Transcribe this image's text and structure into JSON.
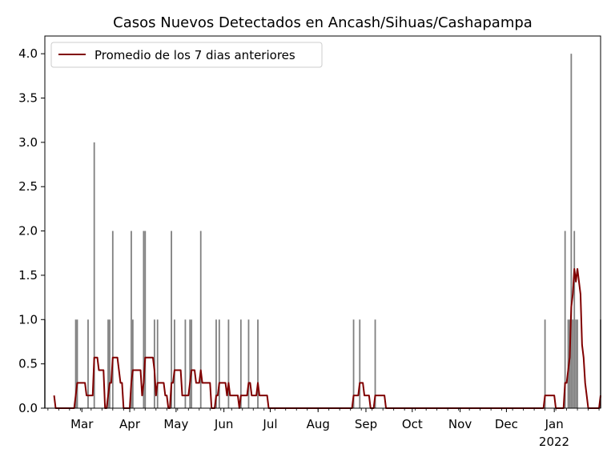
{
  "colors": {
    "bars": "#808080",
    "line": "#800000",
    "axes": "#000000",
    "legend_border": "#cccccc"
  },
  "chart_data": {
    "type": "bar",
    "title": "Casos Nuevos Detectados en Ancash/Sihuas/Cashapampa",
    "xlabel": "",
    "ylabel": "",
    "grid": false,
    "legend_position": "top-left",
    "x_axis": {
      "type": "date",
      "range": [
        "2021-02-05",
        "2022-01-31"
      ],
      "ticks": [
        {
          "date": "2021-03-01",
          "label": "Mar"
        },
        {
          "date": "2021-04-01",
          "label": "Apr"
        },
        {
          "date": "2021-05-01",
          "label": "May"
        },
        {
          "date": "2021-06-01",
          "label": "Jun"
        },
        {
          "date": "2021-07-01",
          "label": "Jul"
        },
        {
          "date": "2021-08-01",
          "label": "Aug"
        },
        {
          "date": "2021-09-01",
          "label": "Sep"
        },
        {
          "date": "2021-10-01",
          "label": "Oct"
        },
        {
          "date": "2021-11-01",
          "label": "Nov"
        },
        {
          "date": "2021-12-01",
          "label": "Dec"
        },
        {
          "date": "2022-01-01",
          "label": "Jan"
        }
      ],
      "secondary_label": "2022"
    },
    "y_axis": {
      "range": [
        0,
        4.2
      ],
      "ticks": [
        {
          "value": 0,
          "label": "0.0"
        },
        {
          "value": 0.5,
          "label": "0.5"
        },
        {
          "value": 1,
          "label": "1.0"
        },
        {
          "value": 1.5,
          "label": "1.5"
        },
        {
          "value": 2,
          "label": "2.0"
        },
        {
          "value": 2.5,
          "label": "2.5"
        },
        {
          "value": 3,
          "label": "3.0"
        },
        {
          "value": 3.5,
          "label": "3.5"
        },
        {
          "value": 4,
          "label": "4.0"
        }
      ]
    },
    "bars": {
      "name": "",
      "points": [
        {
          "date": "2021-02-05",
          "value": 1
        },
        {
          "date": "2021-02-25",
          "value": 1
        },
        {
          "date": "2021-02-26",
          "value": 1
        },
        {
          "date": "2021-03-05",
          "value": 1
        },
        {
          "date": "2021-03-09",
          "value": 3
        },
        {
          "date": "2021-03-18",
          "value": 1
        },
        {
          "date": "2021-03-19",
          "value": 1
        },
        {
          "date": "2021-03-21",
          "value": 2
        },
        {
          "date": "2021-04-02",
          "value": 2
        },
        {
          "date": "2021-04-03",
          "value": 1
        },
        {
          "date": "2021-04-10",
          "value": 2
        },
        {
          "date": "2021-04-11",
          "value": 2
        },
        {
          "date": "2021-04-17",
          "value": 1
        },
        {
          "date": "2021-04-19",
          "value": 1
        },
        {
          "date": "2021-04-28",
          "value": 2
        },
        {
          "date": "2021-04-30",
          "value": 1
        },
        {
          "date": "2021-05-07",
          "value": 1
        },
        {
          "date": "2021-05-10",
          "value": 1
        },
        {
          "date": "2021-05-11",
          "value": 1
        },
        {
          "date": "2021-05-17",
          "value": 2
        },
        {
          "date": "2021-05-27",
          "value": 1
        },
        {
          "date": "2021-05-29",
          "value": 1
        },
        {
          "date": "2021-06-04",
          "value": 1
        },
        {
          "date": "2021-06-12",
          "value": 1
        },
        {
          "date": "2021-06-17",
          "value": 1
        },
        {
          "date": "2021-06-23",
          "value": 1
        },
        {
          "date": "2021-08-24",
          "value": 1
        },
        {
          "date": "2021-08-28",
          "value": 1
        },
        {
          "date": "2021-09-07",
          "value": 1
        },
        {
          "date": "2021-12-26",
          "value": 1
        },
        {
          "date": "2022-01-08",
          "value": 2
        },
        {
          "date": "2022-01-10",
          "value": 1
        },
        {
          "date": "2022-01-11",
          "value": 1
        },
        {
          "date": "2022-01-12",
          "value": 4
        },
        {
          "date": "2022-01-13",
          "value": 1
        },
        {
          "date": "2022-01-14",
          "value": 2
        },
        {
          "date": "2022-01-15",
          "value": 1
        },
        {
          "date": "2022-01-16",
          "value": 1
        },
        {
          "date": "2022-01-31",
          "value": 1
        }
      ]
    },
    "series": [
      {
        "name": "Promedio de los 7 dias anteriores",
        "type": "line",
        "window_days": 7,
        "start_date": "2021-02-11"
      }
    ]
  }
}
